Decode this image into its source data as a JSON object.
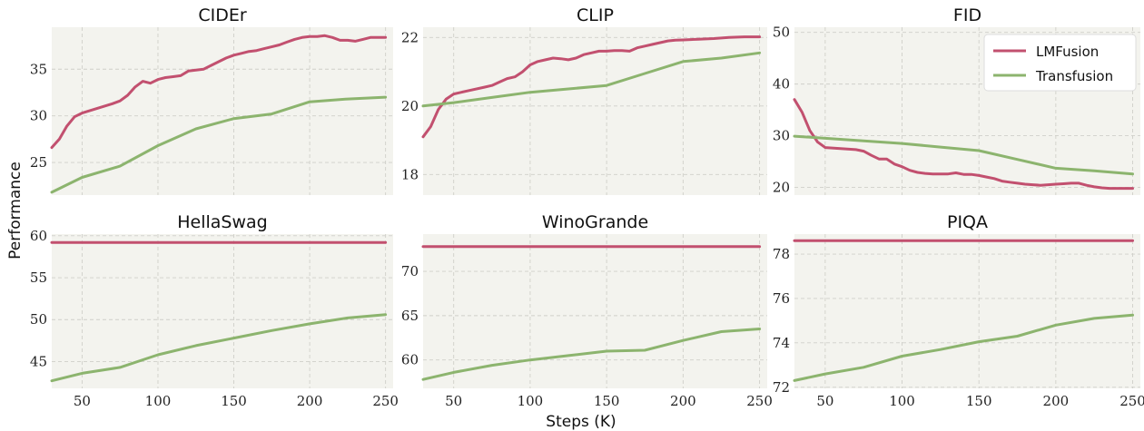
{
  "figure": {
    "xlabel": "Steps (K)",
    "ylabel": "Performance",
    "legend": {
      "placement": "top-right of FID panel",
      "entries": [
        {
          "name": "LMFusion",
          "color": "#c2506f"
        },
        {
          "name": "Transfusion",
          "color": "#8cb46e"
        }
      ]
    }
  },
  "chart_data": [
    {
      "type": "line",
      "title": "CIDEr",
      "xlim": [
        30,
        255
      ],
      "ylim": [
        21.5,
        39.5
      ],
      "xticks": [
        50,
        100,
        150,
        200,
        250
      ],
      "xticklabels_shown": false,
      "yticks": [
        25,
        30,
        35
      ],
      "grid": true,
      "series": [
        {
          "name": "LMFusion",
          "color": "#c2506f",
          "x": [
            30,
            35,
            40,
            45,
            50,
            60,
            70,
            75,
            80,
            85,
            90,
            95,
            100,
            105,
            110,
            115,
            120,
            125,
            130,
            135,
            140,
            145,
            150,
            155,
            160,
            165,
            170,
            175,
            180,
            185,
            190,
            195,
            200,
            205,
            210,
            215,
            220,
            225,
            230,
            235,
            240,
            245,
            250
          ],
          "y": [
            26.6,
            27.5,
            28.9,
            29.9,
            30.3,
            30.8,
            31.3,
            31.6,
            32.2,
            33.1,
            33.7,
            33.5,
            33.9,
            34.1,
            34.2,
            34.3,
            34.8,
            34.9,
            35.0,
            35.4,
            35.8,
            36.2,
            36.5,
            36.7,
            36.9,
            37.0,
            37.2,
            37.4,
            37.6,
            37.9,
            38.2,
            38.4,
            38.5,
            38.5,
            38.6,
            38.4,
            38.1,
            38.1,
            38.0,
            38.2,
            38.4,
            38.4,
            38.4
          ]
        },
        {
          "name": "Transfusion",
          "color": "#8cb46e",
          "x": [
            30,
            50,
            75,
            100,
            125,
            150,
            175,
            200,
            225,
            250
          ],
          "y": [
            21.8,
            23.4,
            24.6,
            26.8,
            28.6,
            29.7,
            30.2,
            31.5,
            31.8,
            32.0
          ]
        }
      ]
    },
    {
      "type": "line",
      "title": "CLIP",
      "xlim": [
        30,
        255
      ],
      "ylim": [
        17.4,
        22.3
      ],
      "xticks": [
        50,
        100,
        150,
        200,
        250
      ],
      "xticklabels_shown": false,
      "yticks": [
        18,
        20,
        22
      ],
      "grid": true,
      "series": [
        {
          "name": "LMFusion",
          "color": "#c2506f",
          "x": [
            30,
            35,
            40,
            45,
            50,
            60,
            70,
            75,
            80,
            85,
            90,
            95,
            100,
            105,
            110,
            115,
            120,
            125,
            130,
            135,
            140,
            145,
            150,
            155,
            160,
            165,
            170,
            175,
            180,
            185,
            190,
            195,
            200,
            210,
            220,
            230,
            240,
            250
          ],
          "y": [
            19.1,
            19.4,
            19.9,
            20.2,
            20.35,
            20.45,
            20.55,
            20.6,
            20.7,
            20.8,
            20.85,
            21.0,
            21.2,
            21.3,
            21.35,
            21.4,
            21.38,
            21.35,
            21.4,
            21.5,
            21.55,
            21.6,
            21.6,
            21.62,
            21.62,
            21.6,
            21.7,
            21.75,
            21.8,
            21.85,
            21.9,
            21.92,
            21.93,
            21.95,
            21.97,
            22.0,
            22.02,
            22.02
          ]
        },
        {
          "name": "Transfusion",
          "color": "#8cb46e",
          "x": [
            30,
            50,
            75,
            100,
            125,
            150,
            175,
            200,
            225,
            250
          ],
          "y": [
            20.0,
            20.1,
            20.25,
            20.4,
            20.5,
            20.6,
            20.95,
            21.3,
            21.4,
            21.55
          ]
        }
      ]
    },
    {
      "type": "line",
      "title": "FID",
      "xlim": [
        30,
        255
      ],
      "ylim": [
        18.5,
        51
      ],
      "xticks": [
        50,
        100,
        150,
        200,
        250
      ],
      "xticklabels_shown": false,
      "yticks": [
        20,
        30,
        40,
        50
      ],
      "grid": true,
      "series": [
        {
          "name": "LMFusion",
          "color": "#c2506f",
          "x": [
            30,
            35,
            40,
            45,
            50,
            60,
            70,
            75,
            80,
            85,
            90,
            95,
            100,
            105,
            110,
            115,
            120,
            125,
            130,
            135,
            140,
            145,
            150,
            155,
            160,
            165,
            170,
            175,
            180,
            185,
            190,
            195,
            200,
            205,
            210,
            215,
            220,
            225,
            230,
            235,
            240,
            245,
            250
          ],
          "y": [
            37.0,
            34.5,
            31.0,
            28.8,
            27.7,
            27.5,
            27.3,
            27.0,
            26.2,
            25.5,
            25.5,
            24.5,
            24.0,
            23.3,
            22.9,
            22.7,
            22.6,
            22.6,
            22.6,
            22.8,
            22.5,
            22.5,
            22.3,
            22.0,
            21.7,
            21.2,
            21.0,
            20.8,
            20.6,
            20.5,
            20.4,
            20.5,
            20.6,
            20.7,
            20.8,
            20.8,
            20.4,
            20.1,
            19.9,
            19.8,
            19.8,
            19.8,
            19.8
          ]
        },
        {
          "name": "Transfusion",
          "color": "#8cb46e",
          "x": [
            30,
            50,
            75,
            100,
            125,
            150,
            175,
            200,
            225,
            250
          ],
          "y": [
            29.9,
            29.5,
            29.0,
            28.5,
            27.8,
            27.1,
            25.4,
            23.7,
            23.2,
            22.6
          ]
        }
      ]
    },
    {
      "type": "line",
      "title": "HellaSwag",
      "xlim": [
        30,
        255
      ],
      "ylim": [
        41.8,
        60.2
      ],
      "xticks": [
        50,
        100,
        150,
        200,
        250
      ],
      "xticklabels_shown": true,
      "yticks": [
        45,
        50,
        55,
        60
      ],
      "grid": true,
      "series": [
        {
          "name": "LMFusion",
          "color": "#c2506f",
          "x": [
            30,
            250
          ],
          "y": [
            59.2,
            59.2
          ]
        },
        {
          "name": "Transfusion",
          "color": "#8cb46e",
          "x": [
            30,
            50,
            75,
            100,
            125,
            150,
            175,
            200,
            225,
            250
          ],
          "y": [
            42.7,
            43.6,
            44.3,
            45.8,
            46.9,
            47.8,
            48.7,
            49.5,
            50.2,
            50.6
          ]
        }
      ]
    },
    {
      "type": "line",
      "title": "WinoGrande",
      "xlim": [
        30,
        255
      ],
      "ylim": [
        56.8,
        74.2
      ],
      "xticks": [
        50,
        100,
        150,
        200,
        250
      ],
      "xticklabels_shown": true,
      "yticks": [
        60,
        65,
        70
      ],
      "grid": true,
      "series": [
        {
          "name": "LMFusion",
          "color": "#c2506f",
          "x": [
            30,
            250
          ],
          "y": [
            72.8,
            72.8
          ]
        },
        {
          "name": "Transfusion",
          "color": "#8cb46e",
          "x": [
            30,
            50,
            75,
            100,
            125,
            150,
            175,
            200,
            225,
            250
          ],
          "y": [
            57.8,
            58.6,
            59.4,
            60.0,
            60.5,
            61.0,
            61.1,
            62.2,
            63.2,
            63.5
          ]
        }
      ]
    },
    {
      "type": "line",
      "title": "PIQA",
      "xlim": [
        30,
        255
      ],
      "ylim": [
        71.95,
        78.9
      ],
      "xticks": [
        50,
        100,
        150,
        200,
        250
      ],
      "xticklabels_shown": true,
      "yticks": [
        72,
        74,
        76,
        78
      ],
      "grid": true,
      "series": [
        {
          "name": "LMFusion",
          "color": "#c2506f",
          "x": [
            30,
            250
          ],
          "y": [
            78.6,
            78.6
          ]
        },
        {
          "name": "Transfusion",
          "color": "#8cb46e",
          "x": [
            30,
            50,
            75,
            100,
            125,
            150,
            175,
            200,
            225,
            250
          ],
          "y": [
            72.3,
            72.6,
            72.9,
            73.4,
            73.7,
            74.05,
            74.3,
            74.8,
            75.1,
            75.25
          ]
        }
      ]
    }
  ]
}
